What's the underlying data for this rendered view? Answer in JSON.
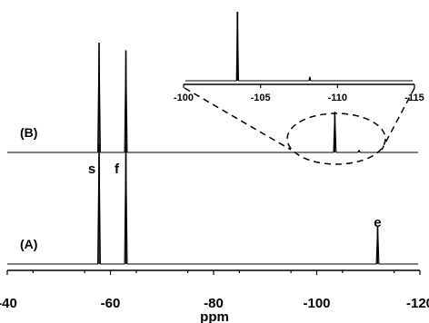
{
  "chart_data": {
    "type": "line",
    "title": "",
    "xlabel": "ppm",
    "xlim": [
      -40,
      -120
    ],
    "x_reversed": true,
    "x_ticks": [
      -40,
      -60,
      -80,
      -100,
      -120
    ],
    "spectra": [
      {
        "label": "(A)",
        "peaks": [
          {
            "ppm": -57.8,
            "height": 1.0,
            "label": "s"
          },
          {
            "ppm": -63.0,
            "height": 1.0,
            "label": "f"
          },
          {
            "ppm": -111.8,
            "height": 0.32,
            "label": "e"
          }
        ]
      },
      {
        "label": "(B)",
        "peaks": [
          {
            "ppm": -57.8,
            "height": 1.0,
            "label": ""
          },
          {
            "ppm": -63.0,
            "height": 0.93,
            "label": ""
          },
          {
            "ppm": -103.5,
            "height": 0.37,
            "label": ""
          },
          {
            "ppm": -108.2,
            "height": 0.02,
            "label": ""
          }
        ]
      }
    ],
    "inset": {
      "xlim": [
        -100,
        -115
      ],
      "x_ticks": [
        -100,
        -105,
        -110,
        -115
      ],
      "peaks": [
        {
          "ppm": -103.5,
          "height": 1.0
        },
        {
          "ppm": -108.2,
          "height": 0.05
        }
      ]
    }
  }
}
